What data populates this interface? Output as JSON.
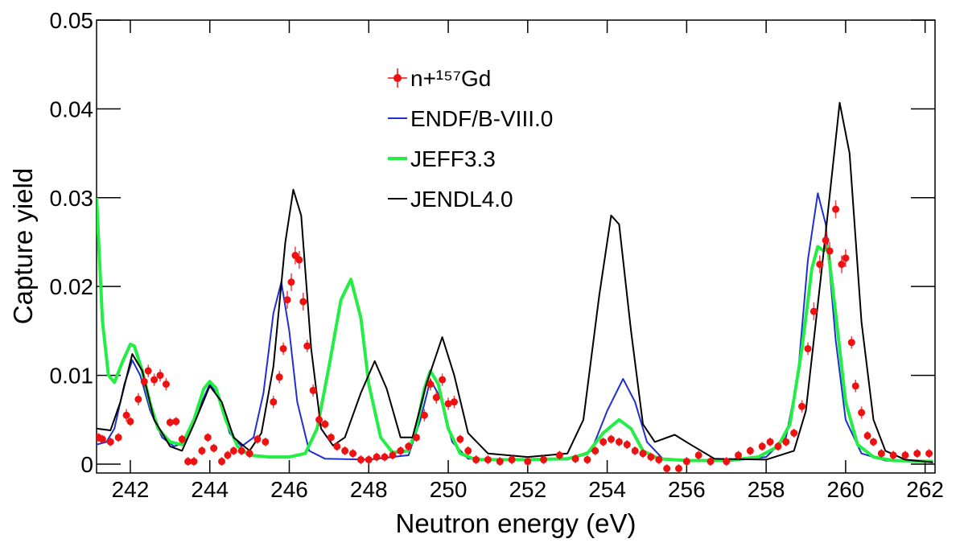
{
  "chart_data": {
    "type": "line",
    "xlabel": "Neutron energy (eV)",
    "ylabel": "Capture yield",
    "xlim": [
      241.15,
      262.25
    ],
    "xticks": [
      242,
      244,
      246,
      248,
      250,
      252,
      254,
      256,
      258,
      260,
      262
    ],
    "ylim": [
      -0.001,
      0.05
    ],
    "yticks": [
      0,
      0.01,
      0.02,
      0.03,
      0.04,
      0.05
    ],
    "legend": "upper center",
    "series": [
      {
        "name": "n+¹⁵⁷Gd",
        "color": "#ee1111",
        "markers": true,
        "x": [
          241.2,
          241.3,
          241.5,
          241.7,
          241.9,
          242.0,
          242.2,
          242.35,
          242.45,
          242.6,
          242.75,
          242.9,
          243.0,
          243.15,
          243.3,
          243.45,
          243.6,
          243.8,
          243.95,
          244.1,
          244.3,
          244.45,
          244.6,
          244.8,
          245.0,
          245.2,
          245.4,
          245.6,
          245.75,
          245.85,
          245.95,
          246.05,
          246.15,
          246.25,
          246.35,
          246.45,
          246.6,
          246.75,
          246.9,
          247.05,
          247.2,
          247.4,
          247.6,
          247.8,
          248.0,
          248.2,
          248.4,
          248.6,
          248.8,
          249.0,
          249.2,
          249.4,
          249.55,
          249.7,
          249.85,
          250.0,
          250.15,
          250.3,
          250.5,
          250.7,
          251.0,
          251.3,
          251.6,
          252.0,
          252.4,
          252.8,
          253.2,
          253.5,
          253.7,
          253.9,
          254.1,
          254.3,
          254.5,
          254.7,
          254.9,
          255.1,
          255.3,
          255.5,
          255.8,
          256.0,
          256.3,
          256.6,
          257.0,
          257.3,
          257.6,
          257.9,
          258.1,
          258.3,
          258.5,
          258.7,
          258.9,
          259.05,
          259.2,
          259.35,
          259.5,
          259.6,
          259.75,
          259.9,
          260.0,
          260.15,
          260.25,
          260.4,
          260.55,
          260.7,
          260.9,
          261.2,
          261.5,
          261.8,
          262.1
        ],
        "values": [
          0.003,
          0.0028,
          0.0025,
          0.003,
          0.0055,
          0.0048,
          0.0073,
          0.0093,
          0.0105,
          0.0095,
          0.01,
          0.009,
          0.0047,
          0.0048,
          0.0028,
          0.0003,
          0.0003,
          0.0015,
          0.003,
          0.0018,
          0.0003,
          0.001,
          0.0015,
          0.0015,
          0.0012,
          0.0028,
          0.0025,
          0.007,
          0.0098,
          0.013,
          0.0185,
          0.0205,
          0.0235,
          0.023,
          0.0183,
          0.0133,
          0.0083,
          0.005,
          0.0045,
          0.003,
          0.002,
          0.0015,
          0.0012,
          0.0005,
          0.0005,
          0.0008,
          0.0008,
          0.001,
          0.0015,
          0.002,
          0.003,
          0.0055,
          0.009,
          0.0075,
          0.0095,
          0.0068,
          0.007,
          0.0028,
          0.0015,
          0.0005,
          0.0005,
          0.0003,
          0.0005,
          0.0003,
          0.0005,
          0.001,
          0.0006,
          0.0005,
          0.0015,
          0.0025,
          0.0028,
          0.0025,
          0.0022,
          0.0015,
          0.0012,
          0.0008,
          0.0005,
          -0.0005,
          -0.0005,
          0.0003,
          0.001,
          0.0003,
          0.0003,
          0.001,
          0.0015,
          0.002,
          0.0025,
          0.002,
          0.0025,
          0.0035,
          0.0065,
          0.013,
          0.0172,
          0.0225,
          0.0252,
          0.024,
          0.0287,
          0.0225,
          0.0232,
          0.0137,
          0.0088,
          0.0058,
          0.0032,
          0.0025,
          0.0012,
          0.001,
          0.001,
          0.0012,
          0.0012
        ],
        "errors": [
          0.0005,
          0.0005,
          0.0005,
          0.0005,
          0.0007,
          0.0005,
          0.0007,
          0.0007,
          0.0007,
          0.0007,
          0.0007,
          0.0007,
          0.0005,
          0.0005,
          0.0005,
          0.0005,
          0.0005,
          0.0005,
          0.0005,
          0.0005,
          0.0005,
          0.0005,
          0.0005,
          0.0005,
          0.0005,
          0.0005,
          0.0005,
          0.0007,
          0.0007,
          0.0007,
          0.001,
          0.001,
          0.001,
          0.001,
          0.001,
          0.0007,
          0.0007,
          0.0007,
          0.0005,
          0.0005,
          0.0005,
          0.0005,
          0.0005,
          0.0005,
          0.0005,
          0.0005,
          0.0005,
          0.0005,
          0.0005,
          0.0005,
          0.0005,
          0.0007,
          0.0007,
          0.0007,
          0.0007,
          0.0007,
          0.0007,
          0.0005,
          0.0005,
          0.0005,
          0.0005,
          0.0005,
          0.0005,
          0.0005,
          0.0005,
          0.0005,
          0.0005,
          0.0005,
          0.0005,
          0.0005,
          0.0005,
          0.0005,
          0.0005,
          0.0005,
          0.0005,
          0.0005,
          0.0005,
          0.0005,
          0.0005,
          0.0005,
          0.0005,
          0.0005,
          0.0005,
          0.0005,
          0.0005,
          0.0005,
          0.0005,
          0.0005,
          0.0005,
          0.0005,
          0.0007,
          0.0007,
          0.001,
          0.001,
          0.001,
          0.001,
          0.001,
          0.001,
          0.001,
          0.0007,
          0.0007,
          0.0007,
          0.0005,
          0.0005,
          0.0005,
          0.0005,
          0.0005,
          0.0005,
          0.0005
        ]
      },
      {
        "name": "ENDF/B-VIII.0",
        "color": "#1f2fd0",
        "width": 2,
        "x": [
          241.15,
          241.4,
          241.6,
          241.85,
          242.05,
          242.25,
          242.5,
          242.8,
          243.1,
          243.4,
          243.7,
          244.0,
          244.25,
          244.5,
          244.8,
          245.1,
          245.35,
          245.6,
          245.8,
          246.0,
          246.2,
          246.5,
          246.9,
          248.0,
          249.0,
          249.3,
          249.55,
          249.8,
          250.1,
          250.5,
          253.0,
          253.6,
          254.0,
          254.4,
          254.7,
          255.0,
          255.4,
          257.0,
          258.0,
          258.5,
          258.8,
          259.05,
          259.3,
          259.5,
          259.75,
          260.0,
          260.4,
          261.0,
          262.2
        ],
        "values": [
          0.0022,
          0.0025,
          0.004,
          0.009,
          0.0117,
          0.01,
          0.006,
          0.003,
          0.002,
          0.0025,
          0.006,
          0.009,
          0.0075,
          0.0035,
          0.002,
          0.003,
          0.008,
          0.017,
          0.0205,
          0.015,
          0.007,
          0.0015,
          0.0006,
          0.0005,
          0.001,
          0.005,
          0.0095,
          0.0075,
          0.0025,
          0.0006,
          0.0005,
          0.0015,
          0.006,
          0.0096,
          0.007,
          0.0025,
          0.0006,
          0.0003,
          0.0008,
          0.003,
          0.01,
          0.023,
          0.0305,
          0.027,
          0.014,
          0.005,
          0.0012,
          0.0004,
          0.0002
        ]
      },
      {
        "name": "JEFF3.3",
        "color": "#22ee44",
        "width": 4,
        "x": [
          241.15,
          241.3,
          241.45,
          241.6,
          241.8,
          242.0,
          242.1,
          242.3,
          242.5,
          242.7,
          243.0,
          243.3,
          243.6,
          243.85,
          244.0,
          244.15,
          244.4,
          244.7,
          245.0,
          245.5,
          246.0,
          246.4,
          246.7,
          247.0,
          247.3,
          247.55,
          247.8,
          248.0,
          248.3,
          248.6,
          249.0,
          249.2,
          249.4,
          249.55,
          249.75,
          250.0,
          250.3,
          250.7,
          252.0,
          253.0,
          253.5,
          253.9,
          254.3,
          254.6,
          254.9,
          255.3,
          256.0,
          257.0,
          257.8,
          258.3,
          258.6,
          258.9,
          259.15,
          259.3,
          259.45,
          259.55,
          259.75,
          260.0,
          260.3,
          260.7,
          261.2,
          262.2
        ],
        "values": [
          0.03,
          0.016,
          0.01,
          0.0092,
          0.0115,
          0.0135,
          0.0133,
          0.0105,
          0.0068,
          0.004,
          0.0025,
          0.0022,
          0.005,
          0.0085,
          0.0093,
          0.0086,
          0.005,
          0.002,
          0.001,
          0.0008,
          0.0008,
          0.0012,
          0.004,
          0.011,
          0.0185,
          0.0208,
          0.0165,
          0.009,
          0.003,
          0.0013,
          0.0015,
          0.004,
          0.0085,
          0.0105,
          0.009,
          0.004,
          0.0012,
          0.0005,
          0.0005,
          0.0006,
          0.0012,
          0.0035,
          0.005,
          0.004,
          0.0015,
          0.0006,
          0.0004,
          0.0004,
          0.0008,
          0.002,
          0.0045,
          0.013,
          0.022,
          0.0245,
          0.024,
          0.0245,
          0.017,
          0.007,
          0.0022,
          0.0008,
          0.0004,
          0.0003
        ]
      },
      {
        "name": "JENDL4.0",
        "color": "#000000",
        "width": 2,
        "x": [
          241.15,
          241.5,
          241.75,
          242.05,
          242.3,
          242.6,
          243.0,
          243.3,
          243.6,
          244.0,
          244.3,
          244.6,
          245.0,
          245.3,
          245.6,
          245.9,
          246.1,
          246.3,
          246.55,
          246.8,
          247.1,
          247.4,
          247.8,
          248.15,
          248.45,
          248.8,
          249.1,
          249.45,
          249.85,
          250.15,
          250.5,
          251.0,
          252.0,
          253.0,
          253.4,
          253.8,
          254.1,
          254.3,
          254.6,
          254.9,
          255.2,
          255.7,
          256.1,
          256.7,
          258.0,
          258.7,
          259.0,
          259.4,
          259.85,
          260.1,
          260.4,
          260.7,
          261.0,
          261.5,
          262.2
        ],
        "values": [
          0.004,
          0.0038,
          0.007,
          0.0124,
          0.0105,
          0.005,
          0.002,
          0.0015,
          0.0045,
          0.0088,
          0.007,
          0.003,
          0.0015,
          0.0035,
          0.011,
          0.025,
          0.0309,
          0.028,
          0.013,
          0.004,
          0.0021,
          0.003,
          0.008,
          0.0116,
          0.0085,
          0.003,
          0.003,
          0.009,
          0.0143,
          0.01,
          0.0035,
          0.0012,
          0.0008,
          0.0012,
          0.005,
          0.019,
          0.028,
          0.027,
          0.015,
          0.0045,
          0.0025,
          0.0033,
          0.0022,
          0.0006,
          0.0005,
          0.0015,
          0.006,
          0.022,
          0.0407,
          0.035,
          0.016,
          0.005,
          0.0015,
          0.0005,
          0.0002
        ]
      }
    ]
  }
}
